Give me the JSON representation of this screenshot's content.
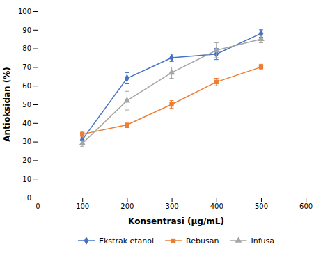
{
  "chart_data": {
    "type": "line",
    "xlabel": "Konsentrasi (μg/mL)",
    "ylabel": "Antioksidan (%)",
    "x": [
      100,
      200,
      300,
      400,
      500
    ],
    "series": [
      {
        "name": "Ekstrak etanol",
        "color": "#4472C4",
        "marker": "diamond",
        "values": [
          31,
          64,
          75,
          77,
          88
        ],
        "errors": [
          2,
          3,
          2,
          3,
          2
        ]
      },
      {
        "name": "Rebusan",
        "color": "#ED7D31",
        "marker": "square",
        "values": [
          34,
          39,
          50,
          62,
          70
        ],
        "errors": [
          1.5,
          1.5,
          2,
          2,
          1.5
        ]
      },
      {
        "name": "Infusa",
        "color": "#A5A5A5",
        "marker": "triangle",
        "values": [
          29,
          52,
          67,
          79,
          85
        ],
        "errors": [
          1.5,
          5,
          3,
          4,
          2
        ]
      }
    ],
    "xlim": [
      0,
      620
    ],
    "ylim": [
      0,
      100
    ],
    "xticks": [
      0,
      100,
      200,
      300,
      400,
      500,
      600
    ],
    "yticks": [
      0,
      10,
      20,
      30,
      40,
      50,
      60,
      70,
      80,
      90,
      100
    ],
    "grid": false,
    "legend": "bottom"
  }
}
